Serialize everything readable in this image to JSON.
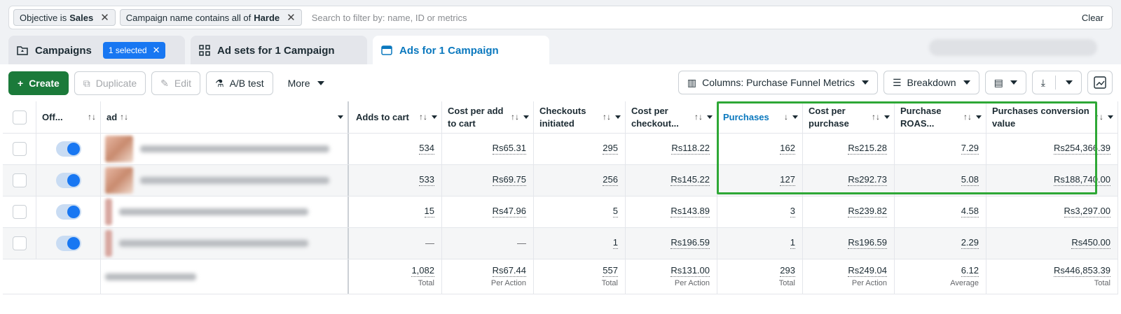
{
  "filters": {
    "chips": [
      {
        "prefix": "Objective is",
        "value": "Sales"
      },
      {
        "prefix": "Campaign name contains all of",
        "value": "Harde"
      }
    ],
    "search_placeholder": "Search to filter by: name, ID or metrics",
    "clear_label": "Clear"
  },
  "tabs": {
    "campaigns": "Campaigns",
    "selected_badge": "1 selected",
    "adsets": "Ad sets for 1 Campaign",
    "ads": "Ads for 1 Campaign"
  },
  "toolbar": {
    "create": "Create",
    "duplicate": "Duplicate",
    "edit": "Edit",
    "ab_test": "A/B test",
    "more": "More",
    "columns": "Columns: Purchase Funnel Metrics",
    "breakdown": "Breakdown"
  },
  "table": {
    "headers": {
      "off": "Off...",
      "ad": "ad",
      "adds_to_cart": "Adds to cart",
      "cost_per_add": "Cost per add to cart",
      "checkouts": "Checkouts initiated",
      "cost_per_checkout": "Cost per checkout...",
      "purchases": "Purchases",
      "cost_per_purchase": "Cost per purchase",
      "roas": "Purchase ROAS...",
      "conv_value": "Purchases conversion value"
    },
    "rows": [
      {
        "adds": "534",
        "cpa": "Rs65.31",
        "checkouts": "295",
        "cpc": "Rs118.22",
        "purchases": "162",
        "cpp": "Rs215.28",
        "roas": "7.29",
        "value": "Rs254,366.39"
      },
      {
        "adds": "533",
        "cpa": "Rs69.75",
        "checkouts": "256",
        "cpc": "Rs145.22",
        "purchases": "127",
        "cpp": "Rs292.73",
        "roas": "5.08",
        "value": "Rs188,740.00"
      },
      {
        "adds": "15",
        "cpa": "Rs47.96",
        "checkouts": "5",
        "cpc": "Rs143.89",
        "purchases": "3",
        "cpp": "Rs239.82",
        "roas": "4.58",
        "value": "Rs3,297.00"
      },
      {
        "adds": "—",
        "cpa": "—",
        "checkouts": "1",
        "cpc": "Rs196.59",
        "purchases": "1",
        "cpp": "Rs196.59",
        "roas": "2.29",
        "value": "Rs450.00"
      }
    ],
    "totals": {
      "adds": {
        "v": "1,082",
        "s": "Total"
      },
      "cpa": {
        "v": "Rs67.44",
        "s": "Per Action"
      },
      "checkouts": {
        "v": "557",
        "s": "Total"
      },
      "cpc": {
        "v": "Rs131.00",
        "s": "Per Action"
      },
      "purchases": {
        "v": "293",
        "s": "Total"
      },
      "cpp": {
        "v": "Rs249.04",
        "s": "Per Action"
      },
      "roas": {
        "v": "6.12",
        "s": "Average"
      },
      "value": {
        "v": "Rs446,853.39",
        "s": "Total"
      }
    }
  }
}
